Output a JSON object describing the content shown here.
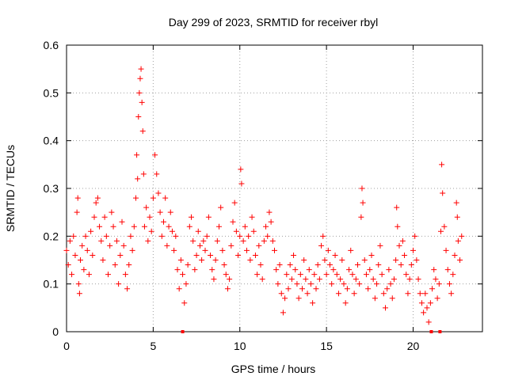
{
  "chart_data": {
    "type": "scatter",
    "title": "Day 299 of 2023, SRMTID for receiver rbyl",
    "xlabel": "GPS time / hours",
    "ylabel": "SRMTID / TECUs",
    "xlim": [
      0,
      24
    ],
    "ylim": [
      0,
      0.6
    ],
    "xticks": [
      "0",
      "5",
      "10",
      "15",
      "20"
    ],
    "xtick_values": [
      0,
      5,
      10,
      15,
      20
    ],
    "yticks": [
      "0",
      "0.1",
      "0.2",
      "0.3",
      "0.4",
      "0.5",
      "0.6"
    ],
    "ytick_values": [
      0,
      0.1,
      0.2,
      0.3,
      0.4,
      0.5,
      0.6
    ],
    "grid": true,
    "marker": "+",
    "color": "#ff0000",
    "series": [
      {
        "name": "SRMTID",
        "points": [
          [
            0.0,
            0.17
          ],
          [
            0.1,
            0.14
          ],
          [
            0.2,
            0.19
          ],
          [
            0.3,
            0.12
          ],
          [
            0.4,
            0.2
          ],
          [
            0.5,
            0.16
          ],
          [
            0.6,
            0.25
          ],
          [
            0.65,
            0.28
          ],
          [
            0.7,
            0.1
          ],
          [
            0.75,
            0.08
          ],
          [
            0.8,
            0.15
          ],
          [
            0.9,
            0.18
          ],
          [
            1.0,
            0.13
          ],
          [
            1.1,
            0.2
          ],
          [
            1.2,
            0.17
          ],
          [
            1.3,
            0.12
          ],
          [
            1.4,
            0.21
          ],
          [
            1.5,
            0.16
          ],
          [
            1.6,
            0.24
          ],
          [
            1.7,
            0.27
          ],
          [
            1.8,
            0.28
          ],
          [
            1.9,
            0.22
          ],
          [
            2.0,
            0.19
          ],
          [
            2.1,
            0.15
          ],
          [
            2.2,
            0.24
          ],
          [
            2.3,
            0.2
          ],
          [
            2.4,
            0.12
          ],
          [
            2.5,
            0.18
          ],
          [
            2.6,
            0.25
          ],
          [
            2.7,
            0.22
          ],
          [
            2.8,
            0.14
          ],
          [
            2.9,
            0.19
          ],
          [
            3.0,
            0.1
          ],
          [
            3.1,
            0.16
          ],
          [
            3.2,
            0.23
          ],
          [
            3.3,
            0.18
          ],
          [
            3.4,
            0.12
          ],
          [
            3.5,
            0.09
          ],
          [
            3.6,
            0.14
          ],
          [
            3.7,
            0.2
          ],
          [
            3.8,
            0.17
          ],
          [
            3.9,
            0.22
          ],
          [
            4.0,
            0.28
          ],
          [
            4.05,
            0.37
          ],
          [
            4.1,
            0.32
          ],
          [
            4.15,
            0.45
          ],
          [
            4.2,
            0.5
          ],
          [
            4.25,
            0.53
          ],
          [
            4.3,
            0.55
          ],
          [
            4.35,
            0.48
          ],
          [
            4.4,
            0.42
          ],
          [
            4.45,
            0.33
          ],
          [
            4.5,
            0.22
          ],
          [
            4.6,
            0.26
          ],
          [
            4.7,
            0.19
          ],
          [
            4.8,
            0.24
          ],
          [
            4.9,
            0.21
          ],
          [
            5.0,
            0.28
          ],
          [
            5.1,
            0.37
          ],
          [
            5.2,
            0.33
          ],
          [
            5.3,
            0.29
          ],
          [
            5.4,
            0.25
          ],
          [
            5.5,
            0.2
          ],
          [
            5.6,
            0.23
          ],
          [
            5.7,
            0.28
          ],
          [
            5.8,
            0.18
          ],
          [
            5.9,
            0.22
          ],
          [
            6.0,
            0.25
          ],
          [
            6.1,
            0.21
          ],
          [
            6.2,
            0.17
          ],
          [
            6.3,
            0.2
          ],
          [
            6.4,
            0.13
          ],
          [
            6.5,
            0.09
          ],
          [
            6.6,
            0.15
          ],
          [
            6.7,
            0.12
          ],
          [
            6.8,
            0.06
          ],
          [
            6.9,
            0.1
          ],
          [
            7.0,
            0.14
          ],
          [
            7.1,
            0.22
          ],
          [
            7.2,
            0.24
          ],
          [
            7.3,
            0.19
          ],
          [
            7.4,
            0.13
          ],
          [
            7.5,
            0.16
          ],
          [
            7.6,
            0.21
          ],
          [
            7.7,
            0.18
          ],
          [
            7.8,
            0.15
          ],
          [
            7.9,
            0.19
          ],
          [
            8.0,
            0.17
          ],
          [
            8.1,
            0.2
          ],
          [
            8.2,
            0.24
          ],
          [
            8.3,
            0.16
          ],
          [
            8.4,
            0.13
          ],
          [
            8.5,
            0.11
          ],
          [
            8.6,
            0.15
          ],
          [
            8.7,
            0.19
          ],
          [
            8.8,
            0.22
          ],
          [
            8.9,
            0.26
          ],
          [
            9.0,
            0.17
          ],
          [
            9.1,
            0.14
          ],
          [
            9.2,
            0.12
          ],
          [
            9.3,
            0.09
          ],
          [
            9.4,
            0.11
          ],
          [
            9.5,
            0.18
          ],
          [
            9.6,
            0.23
          ],
          [
            9.7,
            0.27
          ],
          [
            9.8,
            0.21
          ],
          [
            9.9,
            0.16
          ],
          [
            10.0,
            0.2
          ],
          [
            10.05,
            0.34
          ],
          [
            10.1,
            0.31
          ],
          [
            10.2,
            0.19
          ],
          [
            10.3,
            0.22
          ],
          [
            10.4,
            0.17
          ],
          [
            10.5,
            0.2
          ],
          [
            10.6,
            0.15
          ],
          [
            10.7,
            0.24
          ],
          [
            10.8,
            0.21
          ],
          [
            10.9,
            0.16
          ],
          [
            11.0,
            0.12
          ],
          [
            11.1,
            0.18
          ],
          [
            11.2,
            0.14
          ],
          [
            11.3,
            0.11
          ],
          [
            11.4,
            0.19
          ],
          [
            11.5,
            0.22
          ],
          [
            11.6,
            0.2
          ],
          [
            11.7,
            0.25
          ],
          [
            11.8,
            0.23
          ],
          [
            11.9,
            0.19
          ],
          [
            12.0,
            0.17
          ],
          [
            12.1,
            0.13
          ],
          [
            12.2,
            0.1
          ],
          [
            12.3,
            0.14
          ],
          [
            12.4,
            0.08
          ],
          [
            12.5,
            0.04
          ],
          [
            12.6,
            0.07
          ],
          [
            12.7,
            0.12
          ],
          [
            12.8,
            0.09
          ],
          [
            12.9,
            0.14
          ],
          [
            13.0,
            0.11
          ],
          [
            13.1,
            0.16
          ],
          [
            13.2,
            0.13
          ],
          [
            13.3,
            0.1
          ],
          [
            13.4,
            0.07
          ],
          [
            13.5,
            0.12
          ],
          [
            13.6,
            0.09
          ],
          [
            13.7,
            0.15
          ],
          [
            13.8,
            0.11
          ],
          [
            13.9,
            0.08
          ],
          [
            14.0,
            0.13
          ],
          [
            14.1,
            0.1
          ],
          [
            14.2,
            0.06
          ],
          [
            14.3,
            0.12
          ],
          [
            14.4,
            0.09
          ],
          [
            14.5,
            0.14
          ],
          [
            14.6,
            0.11
          ],
          [
            14.7,
            0.18
          ],
          [
            14.8,
            0.2
          ],
          [
            14.9,
            0.15
          ],
          [
            15.0,
            0.12
          ],
          [
            15.1,
            0.17
          ],
          [
            15.2,
            0.14
          ],
          [
            15.3,
            0.1
          ],
          [
            15.4,
            0.13
          ],
          [
            15.5,
            0.16
          ],
          [
            15.6,
            0.12
          ],
          [
            15.7,
            0.08
          ],
          [
            15.8,
            0.11
          ],
          [
            15.9,
            0.15
          ],
          [
            16.0,
            0.1
          ],
          [
            16.1,
            0.06
          ],
          [
            16.2,
            0.09
          ],
          [
            16.3,
            0.13
          ],
          [
            16.4,
            0.17
          ],
          [
            16.5,
            0.12
          ],
          [
            16.6,
            0.08
          ],
          [
            16.7,
            0.11
          ],
          [
            16.8,
            0.14
          ],
          [
            16.9,
            0.1
          ],
          [
            17.0,
            0.24
          ],
          [
            17.05,
            0.3
          ],
          [
            17.1,
            0.27
          ],
          [
            17.2,
            0.15
          ],
          [
            17.3,
            0.12
          ],
          [
            17.4,
            0.09
          ],
          [
            17.5,
            0.13
          ],
          [
            17.6,
            0.16
          ],
          [
            17.7,
            0.11
          ],
          [
            17.8,
            0.07
          ],
          [
            17.9,
            0.1
          ],
          [
            18.0,
            0.14
          ],
          [
            18.1,
            0.18
          ],
          [
            18.2,
            0.12
          ],
          [
            18.3,
            0.08
          ],
          [
            18.4,
            0.05
          ],
          [
            18.5,
            0.09
          ],
          [
            18.6,
            0.13
          ],
          [
            18.7,
            0.1
          ],
          [
            18.8,
            0.07
          ],
          [
            18.9,
            0.11
          ],
          [
            19.0,
            0.15
          ],
          [
            19.05,
            0.26
          ],
          [
            19.1,
            0.22
          ],
          [
            19.2,
            0.18
          ],
          [
            19.3,
            0.14
          ],
          [
            19.4,
            0.19
          ],
          [
            19.5,
            0.16
          ],
          [
            19.6,
            0.12
          ],
          [
            19.7,
            0.08
          ],
          [
            19.8,
            0.11
          ],
          [
            19.9,
            0.14
          ],
          [
            20.0,
            0.17
          ],
          [
            20.1,
            0.2
          ],
          [
            20.2,
            0.15
          ],
          [
            20.3,
            0.11
          ],
          [
            20.4,
            0.08
          ],
          [
            20.5,
            0.06
          ],
          [
            20.6,
            0.04
          ],
          [
            20.7,
            0.08
          ],
          [
            20.8,
            0.05
          ],
          [
            20.9,
            0.02
          ],
          [
            21.0,
            0.06
          ],
          [
            21.1,
            0.09
          ],
          [
            21.2,
            0.13
          ],
          [
            21.3,
            0.11
          ],
          [
            21.4,
            0.07
          ],
          [
            21.5,
            0.1
          ],
          [
            21.6,
            0.21
          ],
          [
            21.65,
            0.35
          ],
          [
            21.7,
            0.29
          ],
          [
            21.8,
            0.22
          ],
          [
            21.9,
            0.17
          ],
          [
            22.0,
            0.13
          ],
          [
            22.1,
            0.1
          ],
          [
            22.2,
            0.08
          ],
          [
            22.3,
            0.12
          ],
          [
            22.4,
            0.16
          ],
          [
            22.5,
            0.27
          ],
          [
            22.55,
            0.24
          ],
          [
            22.6,
            0.19
          ],
          [
            22.7,
            0.15
          ],
          [
            22.8,
            0.2
          ]
        ]
      }
    ],
    "zero_markers_x": [
      6.7,
      21.05,
      21.55
    ]
  }
}
